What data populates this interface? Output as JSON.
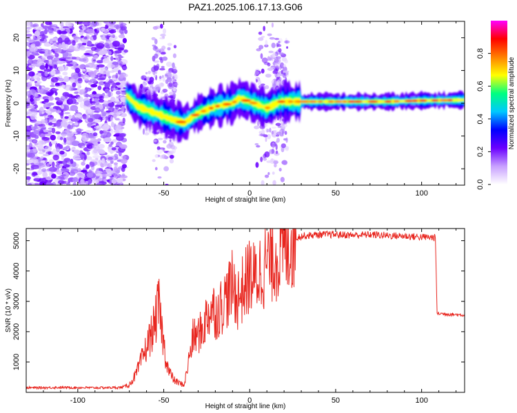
{
  "title": "PAZ1.2025.106.17.13.G06",
  "chart_data": [
    {
      "type": "heatmap",
      "xlabel": "Height of straight line (km)",
      "ylabel": "Frequency (Hz)",
      "xlim": [
        -130,
        125
      ],
      "ylim": [
        -25,
        25
      ],
      "xticks": [
        -100,
        -50,
        0,
        50,
        100
      ],
      "yticks": [
        -20,
        -10,
        0,
        10,
        20
      ],
      "colorbar": {
        "label": "Normalized spectral amplitude",
        "range": [
          0,
          1
        ],
        "ticks": [
          0.0,
          0.2,
          0.4,
          0.6,
          0.8
        ],
        "colormap": [
          "#ffffff",
          "#c8a0ff",
          "#6a00ff",
          "#0000ff",
          "#00c8ff",
          "#00ff80",
          "#ffff00",
          "#ff8000",
          "#ff0000",
          "#ff00ff"
        ]
      },
      "ridge_centerline": [
        {
          "x": -72,
          "y": 2.5
        },
        {
          "x": -65,
          "y": -1.0
        },
        {
          "x": -55,
          "y": -3.0
        },
        {
          "x": -45,
          "y": -5.0
        },
        {
          "x": -38,
          "y": -6.0
        },
        {
          "x": -30,
          "y": -3.0
        },
        {
          "x": -20,
          "y": -1.0
        },
        {
          "x": -10,
          "y": 0.0
        },
        {
          "x": -6,
          "y": 1.5
        },
        {
          "x": 0,
          "y": 0.5
        },
        {
          "x": 10,
          "y": -1.5
        },
        {
          "x": 18,
          "y": 0.5
        },
        {
          "x": 25,
          "y": 0.5
        },
        {
          "x": 50,
          "y": 0.5
        },
        {
          "x": 80,
          "y": 0.5
        },
        {
          "x": 100,
          "y": 0.8
        },
        {
          "x": 125,
          "y": 1.0
        }
      ],
      "noise_region_x": [
        -130,
        -72
      ]
    },
    {
      "type": "line",
      "xlabel": "Height of straight line (km)",
      "ylabel": "SNR (10 * v/v)",
      "xlim": [
        -130,
        125
      ],
      "ylim": [
        0,
        5400
      ],
      "xticks": [
        -100,
        -50,
        0,
        50,
        100
      ],
      "yticks": [
        1000,
        2000,
        3000,
        4000,
        5000
      ],
      "color": "#e8261f",
      "series": [
        {
          "x": [
            -130,
            -110,
            -90,
            -75,
            -70,
            -66,
            -62,
            -58,
            -55,
            -53,
            -51,
            -49,
            -47,
            -44,
            -41,
            -38,
            -35,
            -33,
            -30,
            -27,
            -25,
            -22,
            -19,
            -16,
            -13,
            -10,
            -7,
            -5,
            -2,
            0,
            3,
            6,
            9,
            12,
            15,
            18,
            21,
            24,
            27,
            30,
            40,
            50,
            60,
            70,
            80,
            90,
            100,
            108,
            109,
            110,
            115,
            120,
            125
          ],
          "y": [
            150,
            160,
            150,
            160,
            250,
            600,
            1200,
            1800,
            2300,
            2900,
            2000,
            1200,
            700,
            400,
            300,
            250,
            1200,
            1800,
            1900,
            2100,
            2500,
            2800,
            2600,
            2900,
            3200,
            3500,
            3100,
            3300,
            3600,
            3900,
            3700,
            4000,
            4200,
            4400,
            4500,
            4600,
            4800,
            5000,
            5100,
            5150,
            5200,
            5200,
            5180,
            5200,
            5170,
            5150,
            5120,
            5100,
            2600,
            2600,
            2580,
            2560,
            2550
          ]
        }
      ]
    }
  ]
}
